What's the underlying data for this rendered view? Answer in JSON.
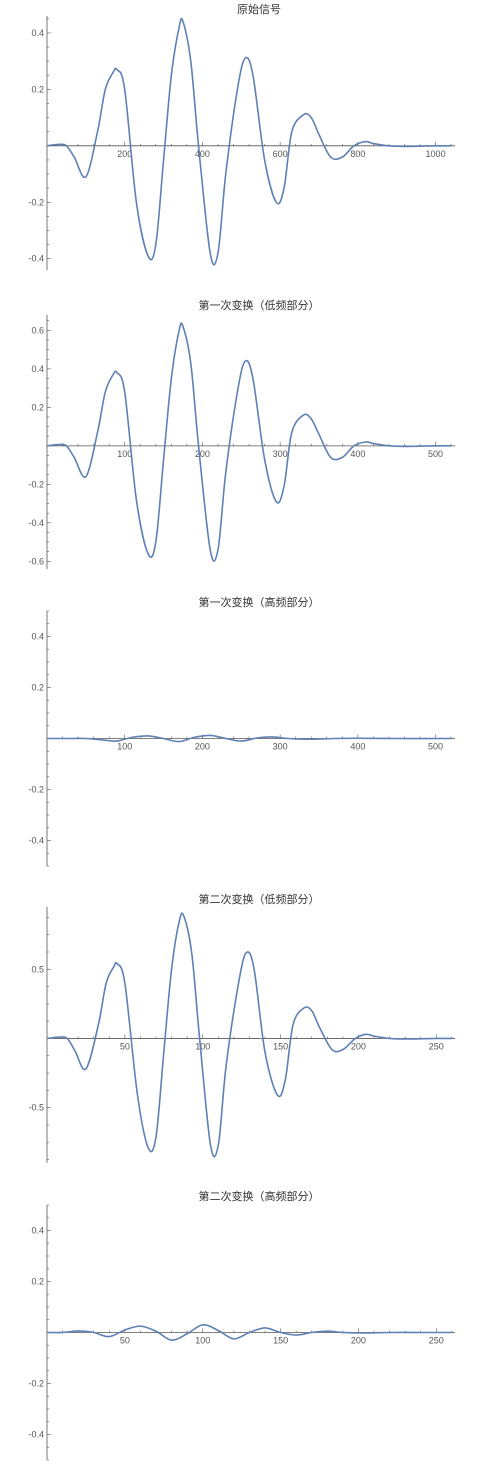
{
  "colors": {
    "series": "#5e81b5",
    "axis": "#555555"
  },
  "chart_data": [
    {
      "type": "line",
      "title": "原始信号",
      "xlim": [
        0,
        1050
      ],
      "ylim": [
        -0.44,
        0.46
      ],
      "x_ticks": [
        200,
        400,
        600,
        800,
        1000
      ],
      "y_ticks": [
        -0.4,
        -0.2,
        0.2,
        0.4
      ],
      "y_tick_labels": [
        "-0.4",
        "-0.2",
        "0.2",
        "0.4"
      ],
      "series": [
        {
          "x": [
            0,
            30,
            50,
            70,
            100,
            130,
            150,
            170,
            180,
            200,
            230,
            260,
            280,
            300,
            320,
            340,
            350,
            370,
            390,
            420,
            440,
            460,
            490,
            510,
            530,
            560,
            590,
            610,
            630,
            660,
            680,
            700,
            730,
            760,
            790,
            820,
            840,
            880,
            920,
            1000,
            1040
          ],
          "y": [
            0,
            0.005,
            0,
            -0.04,
            -0.11,
            0.05,
            0.2,
            0.26,
            0.27,
            0.2,
            -0.2,
            -0.39,
            -0.35,
            -0.05,
            0.25,
            0.42,
            0.44,
            0.3,
            0,
            -0.38,
            -0.38,
            -0.1,
            0.2,
            0.31,
            0.25,
            -0.05,
            -0.2,
            -0.15,
            0.05,
            0.11,
            0.1,
            0.04,
            -0.04,
            -0.04,
            0,
            0.015,
            0.008,
            0,
            -0.002,
            0,
            0
          ]
        }
      ]
    },
    {
      "type": "line",
      "title": "第一次变换（低频部分）",
      "xlim": [
        0,
        525
      ],
      "ylim": [
        -0.64,
        0.68
      ],
      "x_ticks": [
        100,
        200,
        300,
        400,
        500
      ],
      "y_ticks": [
        -0.6,
        -0.4,
        -0.2,
        0.2,
        0.4,
        0.6
      ],
      "y_tick_labels": [
        "-0.6",
        "-0.4",
        "-0.2",
        "0.2",
        "0.4",
        "0.6"
      ],
      "series": [
        {
          "x": [
            0,
            15,
            25,
            35,
            50,
            65,
            75,
            85,
            90,
            100,
            115,
            130,
            140,
            150,
            160,
            170,
            175,
            185,
            195,
            210,
            220,
            230,
            245,
            255,
            265,
            280,
            295,
            305,
            315,
            330,
            340,
            350,
            365,
            380,
            395,
            410,
            420,
            440,
            460,
            500,
            520
          ],
          "y": [
            0,
            0.007,
            0,
            -0.06,
            -0.16,
            0.07,
            0.28,
            0.37,
            0.38,
            0.28,
            -0.28,
            -0.56,
            -0.5,
            -0.07,
            0.35,
            0.6,
            0.62,
            0.43,
            0,
            -0.54,
            -0.54,
            -0.14,
            0.28,
            0.44,
            0.35,
            -0.07,
            -0.29,
            -0.21,
            0.07,
            0.16,
            0.14,
            0.06,
            -0.06,
            -0.06,
            0,
            0.02,
            0.012,
            0,
            -0.003,
            0,
            0
          ]
        }
      ]
    },
    {
      "type": "line",
      "title": "第一次变换（高频部分）",
      "xlim": [
        0,
        525
      ],
      "ylim": [
        -0.5,
        0.5
      ],
      "x_ticks": [
        100,
        200,
        300,
        400,
        500
      ],
      "y_ticks": [
        -0.4,
        -0.2,
        0.2,
        0.4
      ],
      "y_tick_labels": [
        "-0.4",
        "-0.2",
        "0.2",
        "0.4"
      ],
      "series": [
        {
          "x": [
            0,
            30,
            50,
            70,
            90,
            110,
            130,
            150,
            170,
            190,
            210,
            230,
            250,
            270,
            290,
            310,
            340,
            370,
            400,
            450,
            520
          ],
          "y": [
            0,
            0,
            0,
            -0.005,
            -0.01,
            0.005,
            0.01,
            0,
            -0.012,
            0.005,
            0.012,
            0,
            -0.01,
            0.002,
            0.006,
            0,
            -0.003,
            0,
            0.001,
            0,
            0
          ]
        }
      ]
    },
    {
      "type": "line",
      "title": "第二次变换（低频部分）",
      "xlim": [
        0,
        262
      ],
      "ylim": [
        -0.9,
        0.95
      ],
      "x_ticks": [
        50,
        100,
        150,
        200,
        250
      ],
      "y_ticks": [
        -0.5,
        0.5
      ],
      "y_tick_labels": [
        "-0.5",
        "0.5"
      ],
      "series": [
        {
          "x": [
            0,
            8,
            13,
            18,
            25,
            33,
            38,
            43,
            45,
            50,
            58,
            65,
            70,
            75,
            80,
            85,
            88,
            93,
            98,
            105,
            110,
            115,
            123,
            128,
            133,
            140,
            148,
            153,
            158,
            165,
            170,
            175,
            183,
            190,
            198,
            205,
            210,
            220,
            230,
            250,
            260
          ],
          "y": [
            0,
            0.01,
            0,
            -0.09,
            -0.22,
            0.1,
            0.4,
            0.52,
            0.54,
            0.4,
            -0.4,
            -0.79,
            -0.71,
            -0.1,
            0.5,
            0.85,
            0.88,
            0.61,
            0,
            -0.77,
            -0.77,
            -0.2,
            0.4,
            0.62,
            0.5,
            -0.1,
            -0.41,
            -0.3,
            0.1,
            0.22,
            0.2,
            0.08,
            -0.08,
            -0.08,
            0,
            0.03,
            0.017,
            0,
            -0.004,
            0,
            0
          ]
        }
      ]
    },
    {
      "type": "line",
      "title": "第二次变换（高频部分）",
      "xlim": [
        0,
        262
      ],
      "ylim": [
        -0.5,
        0.5
      ],
      "x_ticks": [
        50,
        100,
        150,
        200,
        250
      ],
      "y_ticks": [
        -0.4,
        -0.2,
        0.2,
        0.4
      ],
      "y_tick_labels": [
        "-0.4",
        "-0.2",
        "0.2",
        "0.4"
      ],
      "series": [
        {
          "x": [
            0,
            10,
            20,
            30,
            40,
            50,
            60,
            70,
            80,
            90,
            100,
            110,
            120,
            130,
            140,
            150,
            160,
            170,
            180,
            190,
            200,
            220,
            240,
            260
          ],
          "y": [
            0,
            0,
            0.006,
            0,
            -0.016,
            0.01,
            0.025,
            0.005,
            -0.03,
            -0.005,
            0.03,
            0.008,
            -0.025,
            0,
            0.018,
            0,
            -0.01,
            0,
            0.005,
            0,
            -0.002,
            0,
            0,
            0
          ]
        }
      ]
    }
  ]
}
